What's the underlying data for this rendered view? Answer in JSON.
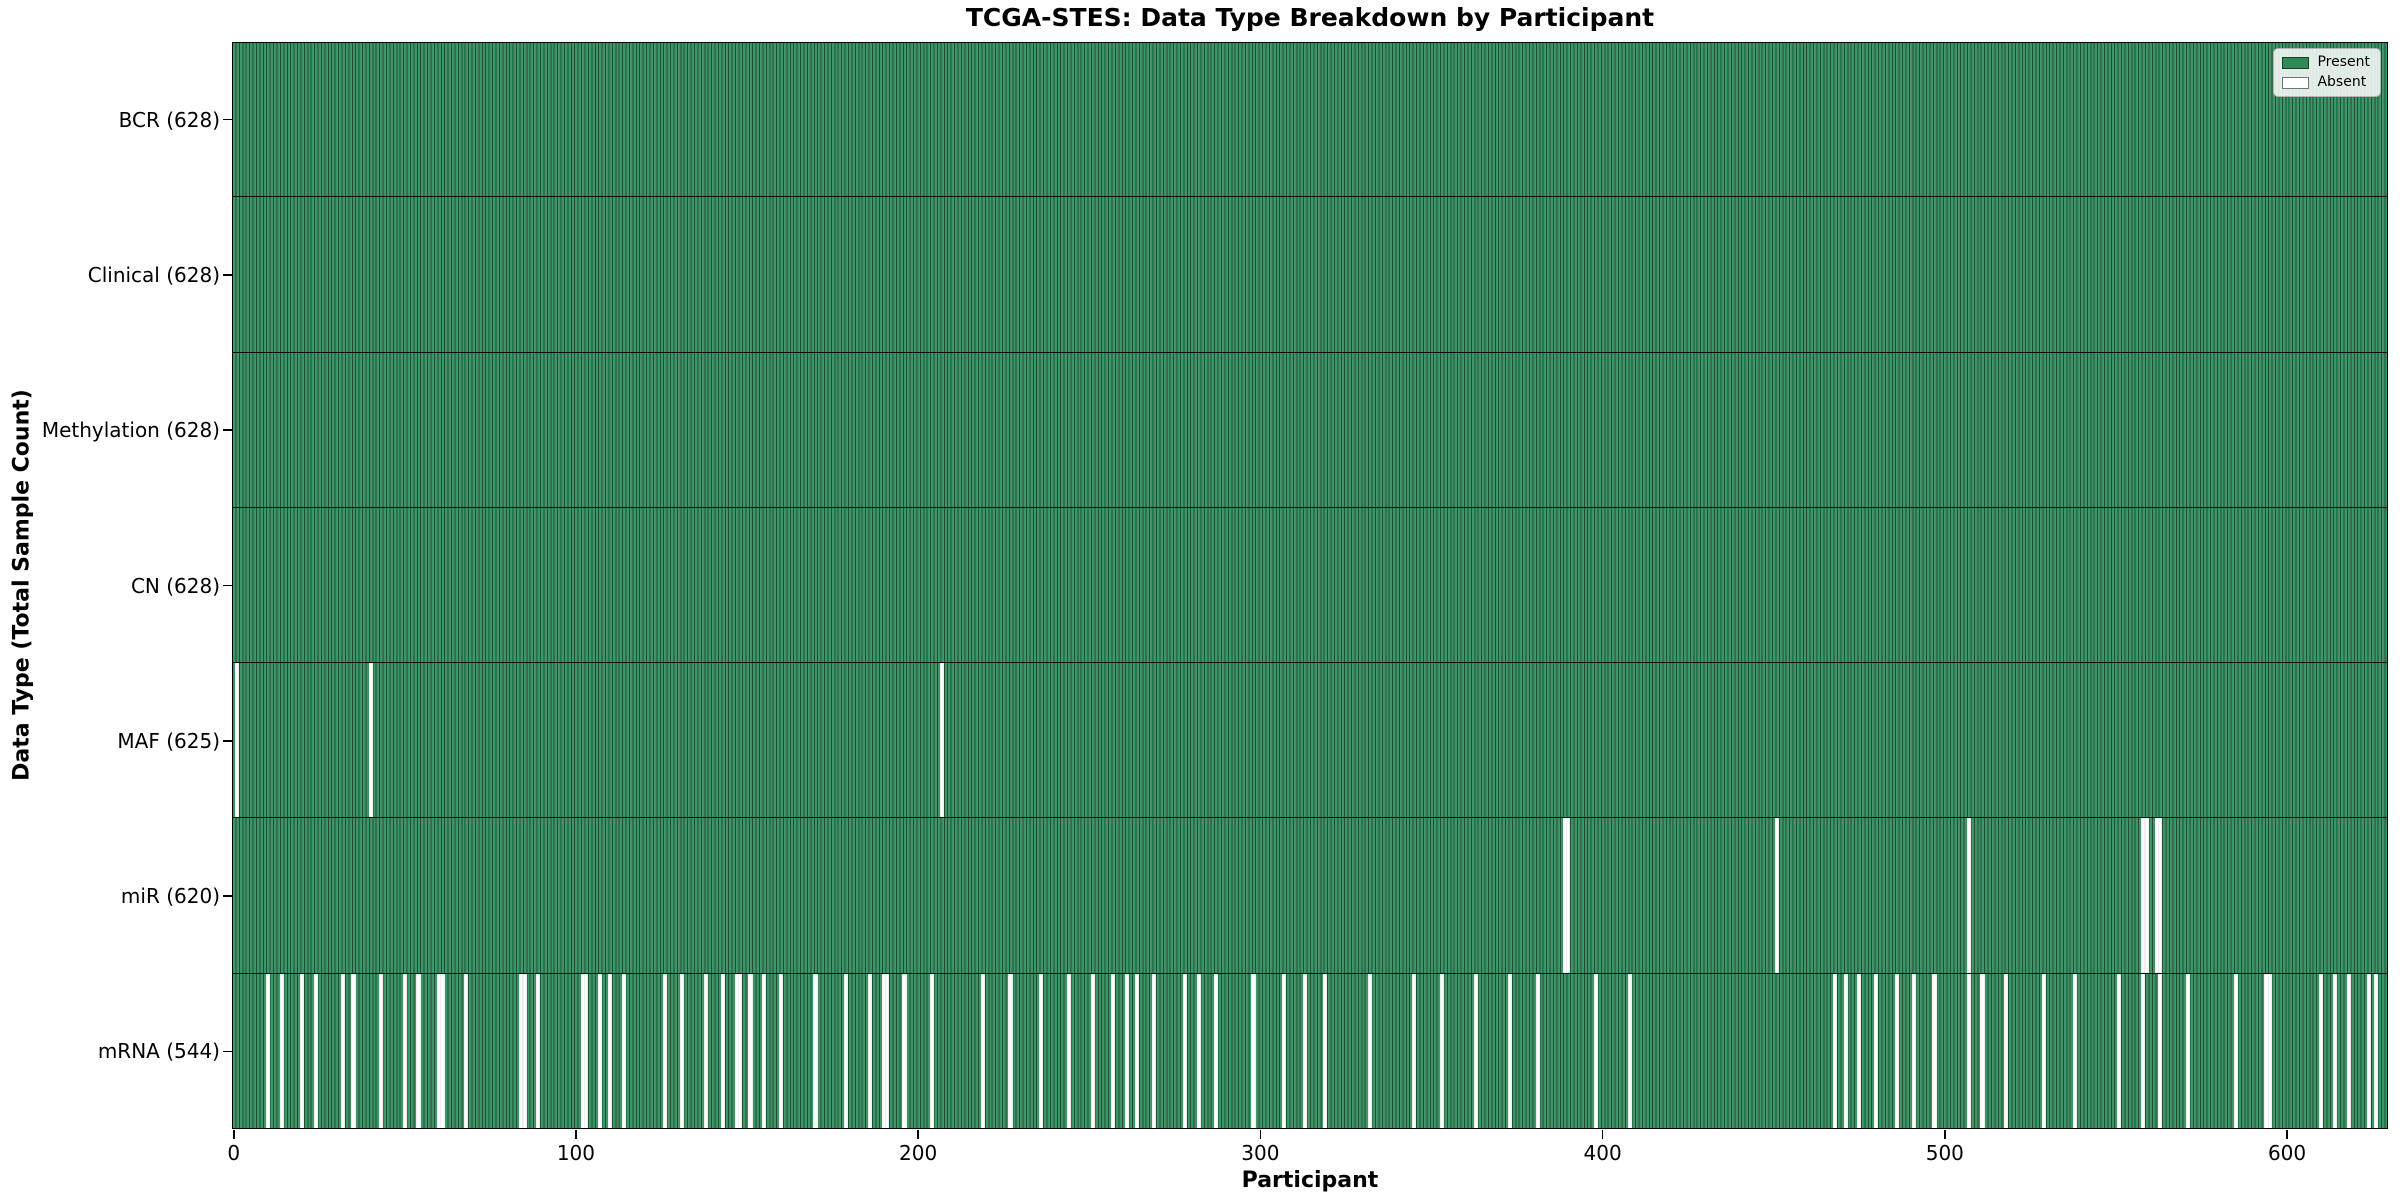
{
  "figure": {
    "title": "TCGA-STES: Data Type Breakdown by Participant",
    "xlabel": "Participant",
    "ylabel": "Data Type (Total Sample Count)"
  },
  "legend": {
    "items": [
      {
        "label": "Present",
        "color": "#2e8b57"
      },
      {
        "label": "Absent",
        "color": "#ffffff"
      }
    ]
  },
  "chart_data": {
    "type": "heatmap",
    "subtype": "presence-absence-barcode",
    "title": "TCGA-STES: Data Type Breakdown by Participant",
    "xlabel": "Participant",
    "ylabel": "Data Type (Total Sample Count)",
    "n_participants": 628,
    "xlim": [
      -0.5,
      629.5
    ],
    "x_ticks": [
      0,
      100,
      200,
      300,
      400,
      500,
      600
    ],
    "grid": false,
    "legend_position": "upper right",
    "present_color": "#2e8b57",
    "present_edge_color": "#1e4f34",
    "absent_color": "#ffffff",
    "rows": [
      {
        "label": "BCR (628)",
        "name": "BCR",
        "present_count": 628,
        "absent_participants": []
      },
      {
        "label": "Clinical (628)",
        "name": "Clinical",
        "present_count": 628,
        "absent_participants": []
      },
      {
        "label": "Methylation (628)",
        "name": "Methylation",
        "present_count": 628,
        "absent_participants": []
      },
      {
        "label": "CN (628)",
        "name": "CN",
        "present_count": 628,
        "absent_participants": []
      },
      {
        "label": "MAF (625)",
        "name": "MAF",
        "present_count": 625,
        "absent_participants": [
          1,
          40,
          207
        ]
      },
      {
        "label": "miR (620)",
        "name": "miR",
        "present_count": 620,
        "absent_participants": [
          389,
          390,
          451,
          507,
          558,
          559,
          562,
          563
        ]
      },
      {
        "label": "mRNA (544)",
        "name": "mRNA",
        "present_count": 544,
        "absent_participants": [
          10,
          14,
          20,
          24,
          32,
          35,
          43,
          50,
          54,
          60,
          61,
          68,
          84,
          85,
          89,
          102,
          103,
          107,
          110,
          114,
          126,
          131,
          138,
          143,
          147,
          148,
          151,
          155,
          160,
          170,
          179,
          186,
          190,
          191,
          196,
          204,
          219,
          227,
          236,
          244,
          251,
          257,
          261,
          264,
          269,
          278,
          282,
          287,
          298,
          307,
          313,
          319,
          332,
          345,
          353,
          363,
          373,
          381,
          398,
          408,
          468,
          471,
          475,
          480,
          486,
          491,
          497,
          507,
          511,
          518,
          529,
          538,
          551,
          558,
          563,
          571,
          585,
          594,
          595,
          610,
          614,
          618,
          624,
          626
        ]
      }
    ]
  }
}
